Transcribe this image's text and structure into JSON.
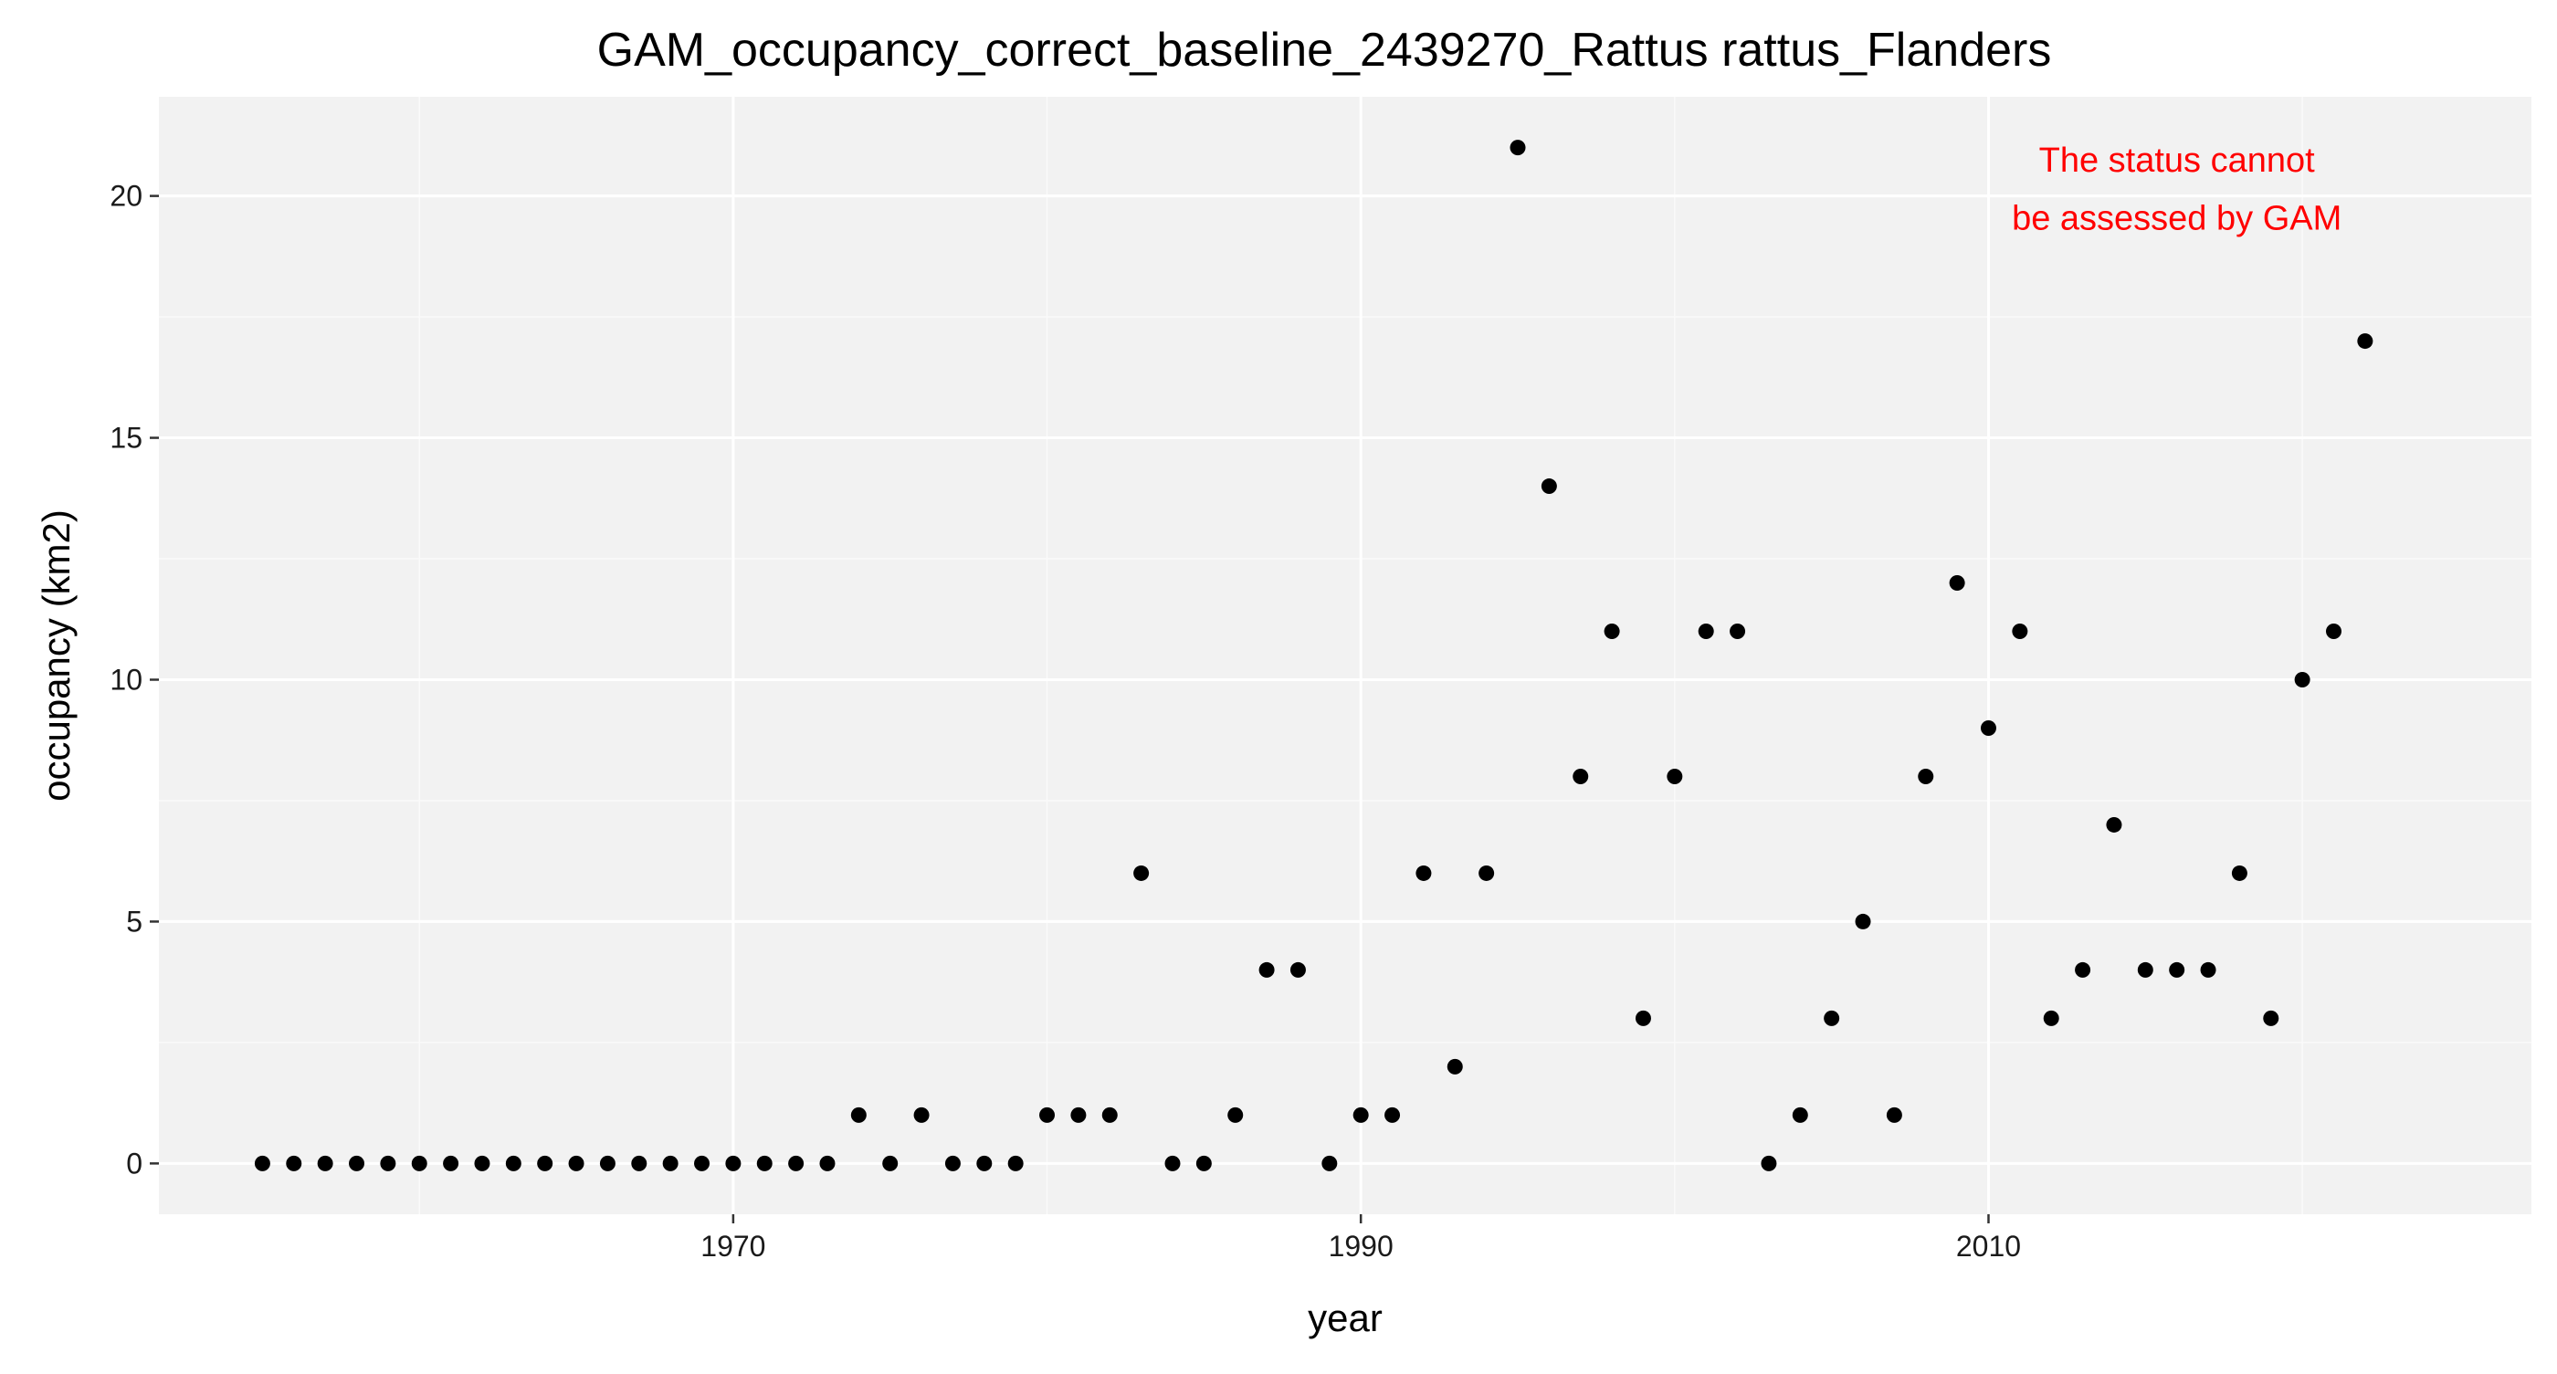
{
  "chart_data": {
    "type": "scatter",
    "title": "GAM_occupancy_correct_baseline_2439270_Rattus rattus_Flanders",
    "xlabel": "year",
    "ylabel": "occupancy (km2)",
    "xlim": [
      1951.7,
      2027.3
    ],
    "ylim": [
      -1.05,
      22.05
    ],
    "x_ticks": [
      1970,
      1990,
      2010
    ],
    "x_tick_labels": [
      "1970",
      "1990",
      "2010"
    ],
    "x_minor_ticks": [
      1960,
      1980,
      2000,
      2020
    ],
    "y_ticks": [
      0,
      5,
      10,
      15,
      20
    ],
    "y_tick_labels": [
      "0",
      "5",
      "10",
      "15",
      "20"
    ],
    "y_minor_ticks": [
      2.5,
      7.5,
      12.5,
      17.5
    ],
    "grid": true,
    "legend": "none",
    "colors": {
      "panel_background": "#f2f2f2",
      "grid_major": "#ffffff",
      "grid_minor": "#fafafa",
      "point": "#000000",
      "axis_tick": "#333333",
      "annotation": "#ff0000"
    },
    "annotation": {
      "lines": [
        "The status cannot",
        "be assessed by GAM"
      ],
      "x": 2016,
      "y": [
        20.75,
        19.55
      ]
    },
    "series": [
      {
        "x": [
          1955,
          1956,
          1957,
          1958,
          1959,
          1960,
          1961,
          1962,
          1963,
          1964,
          1965,
          1966,
          1967,
          1968,
          1969,
          1970,
          1971,
          1972,
          1973,
          1974,
          1975,
          1976,
          1977,
          1978,
          1979,
          1980,
          1981,
          1982,
          1983,
          1984,
          1985,
          1986,
          1987,
          1988,
          1989,
          1990,
          1991,
          1992,
          1993,
          1994,
          1995,
          1996,
          1997,
          1998,
          1999,
          2000,
          2001,
          2002,
          2003,
          2004,
          2005,
          2006,
          2007,
          2008,
          2009,
          2010,
          2011,
          2012,
          2013,
          2014,
          2015,
          2016,
          2017,
          2018,
          2019,
          2020,
          2021,
          2022
        ],
        "y": [
          0,
          0,
          0,
          0,
          0,
          0,
          0,
          0,
          0,
          0,
          0,
          0,
          0,
          0,
          0,
          0,
          0,
          0,
          0,
          1,
          0,
          1,
          0,
          0,
          0,
          1,
          1,
          1,
          6,
          0,
          0,
          1,
          4,
          4,
          0,
          1,
          1,
          6,
          2,
          6,
          21,
          14,
          8,
          11,
          3,
          8,
          11,
          11,
          0,
          1,
          3,
          5,
          1,
          8,
          12,
          9,
          11,
          3,
          4,
          7,
          4,
          4,
          4,
          6,
          3,
          10,
          11,
          17
        ]
      }
    ]
  }
}
